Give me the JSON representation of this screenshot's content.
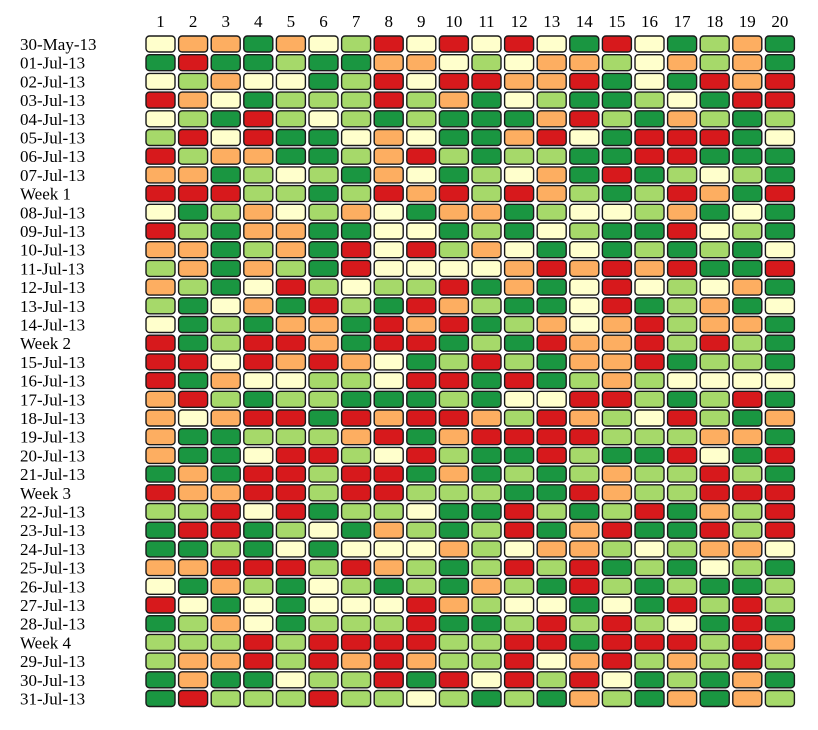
{
  "chart_data": {
    "type": "heatmap",
    "title": "",
    "xlabel": "",
    "ylabel": "",
    "columns": [
      "1",
      "2",
      "3",
      "4",
      "5",
      "6",
      "7",
      "8",
      "9",
      "10",
      "11",
      "12",
      "13",
      "14",
      "15",
      "16",
      "17",
      "18",
      "19",
      "20"
    ],
    "rows": [
      "30-May-13",
      "01-Jul-13",
      "02-Jul-13",
      "03-Jul-13",
      "04-Jul-13",
      "05-Jul-13",
      "06-Jul-13",
      "07-Jul-13",
      "Week 1",
      "08-Jul-13",
      "09-Jul-13",
      "10-Jul-13",
      "11-Jul-13",
      "12-Jul-13",
      "13-Jul-13",
      "14-Jul-13",
      "Week 2",
      "15-Jul-13",
      "16-Jul-13",
      "17-Jul-13",
      "18-Jul-13",
      "19-Jul-13",
      "20-Jul-13",
      "21-Jul-13",
      "Week 3",
      "22-Jul-13",
      "23-Jul-13",
      "24-Jul-13",
      "25-Jul-13",
      "26-Jul-13",
      "27-Jul-13",
      "28-Jul-13",
      "Week 4",
      "29-Jul-13",
      "30-Jul-13",
      "31-Jul-13"
    ],
    "scale": [
      "1",
      "2",
      "3",
      "4",
      "5"
    ],
    "colors": {
      "1": "#d7191c",
      "2": "#fdae61",
      "3": "#ffffcc",
      "4": "#a6d96a",
      "5": "#1a9641"
    },
    "values": [
      [
        3,
        2,
        2,
        5,
        2,
        3,
        4,
        1,
        3,
        1,
        3,
        1,
        3,
        5,
        1,
        3,
        5,
        4,
        2,
        5
      ],
      [
        5,
        1,
        5,
        5,
        4,
        5,
        5,
        2,
        2,
        3,
        4,
        3,
        2,
        2,
        4,
        3,
        2,
        4,
        2,
        5
      ],
      [
        3,
        4,
        2,
        3,
        3,
        5,
        4,
        1,
        3,
        1,
        1,
        2,
        2,
        1,
        5,
        3,
        5,
        1,
        2,
        1
      ],
      [
        1,
        2,
        3,
        5,
        4,
        4,
        4,
        1,
        4,
        2,
        5,
        3,
        4,
        5,
        5,
        4,
        3,
        5,
        1,
        1
      ],
      [
        3,
        4,
        5,
        1,
        4,
        3,
        4,
        5,
        4,
        5,
        5,
        5,
        2,
        1,
        4,
        5,
        2,
        4,
        5,
        4
      ],
      [
        4,
        1,
        3,
        1,
        5,
        5,
        3,
        2,
        3,
        5,
        5,
        2,
        1,
        3,
        5,
        1,
        1,
        1,
        5,
        3
      ],
      [
        1,
        4,
        2,
        2,
        5,
        5,
        4,
        2,
        1,
        4,
        5,
        4,
        4,
        5,
        5,
        1,
        1,
        5,
        5,
        5
      ],
      [
        2,
        2,
        5,
        4,
        3,
        4,
        5,
        2,
        3,
        5,
        4,
        3,
        2,
        5,
        1,
        5,
        4,
        3,
        4,
        5
      ],
      [
        1,
        1,
        1,
        4,
        4,
        5,
        4,
        1,
        2,
        1,
        4,
        1,
        2,
        4,
        5,
        4,
        1,
        2,
        5,
        1
      ],
      [
        3,
        5,
        4,
        2,
        3,
        4,
        2,
        3,
        5,
        2,
        2,
        5,
        4,
        3,
        3,
        4,
        2,
        5,
        3,
        5
      ],
      [
        1,
        4,
        5,
        2,
        2,
        5,
        5,
        3,
        3,
        5,
        4,
        5,
        3,
        4,
        5,
        5,
        1,
        3,
        4,
        5
      ],
      [
        2,
        2,
        5,
        4,
        2,
        5,
        1,
        3,
        1,
        4,
        2,
        3,
        5,
        3,
        5,
        4,
        5,
        4,
        5,
        3
      ],
      [
        4,
        2,
        5,
        2,
        4,
        5,
        1,
        3,
        3,
        3,
        3,
        2,
        1,
        2,
        1,
        2,
        1,
        5,
        5,
        1
      ],
      [
        2,
        4,
        5,
        3,
        1,
        4,
        3,
        4,
        4,
        1,
        5,
        2,
        5,
        3,
        1,
        3,
        4,
        3,
        2,
        5
      ],
      [
        4,
        5,
        3,
        2,
        5,
        1,
        4,
        5,
        1,
        2,
        4,
        5,
        5,
        3,
        1,
        5,
        4,
        2,
        5,
        3
      ],
      [
        3,
        5,
        4,
        5,
        2,
        2,
        5,
        1,
        2,
        1,
        5,
        4,
        2,
        3,
        2,
        1,
        4,
        2,
        2,
        5
      ],
      [
        1,
        5,
        4,
        1,
        1,
        2,
        5,
        1,
        1,
        5,
        4,
        5,
        1,
        2,
        2,
        1,
        4,
        1,
        4,
        5
      ],
      [
        1,
        1,
        3,
        1,
        2,
        1,
        2,
        3,
        5,
        4,
        1,
        4,
        5,
        2,
        2,
        1,
        5,
        4,
        4,
        5
      ],
      [
        1,
        5,
        2,
        3,
        3,
        4,
        4,
        3,
        1,
        1,
        5,
        1,
        5,
        4,
        2,
        4,
        3,
        3,
        3,
        3
      ],
      [
        2,
        1,
        4,
        5,
        4,
        4,
        5,
        5,
        5,
        4,
        5,
        3,
        3,
        1,
        1,
        4,
        5,
        4,
        1,
        5
      ],
      [
        2,
        3,
        2,
        1,
        1,
        5,
        1,
        2,
        1,
        1,
        2,
        4,
        1,
        2,
        4,
        3,
        1,
        4,
        5,
        2
      ],
      [
        2,
        5,
        5,
        4,
        4,
        4,
        2,
        1,
        5,
        2,
        1,
        1,
        1,
        1,
        4,
        4,
        4,
        2,
        2,
        5
      ],
      [
        2,
        5,
        5,
        3,
        1,
        1,
        4,
        3,
        1,
        4,
        5,
        5,
        1,
        4,
        5,
        5,
        1,
        3,
        5,
        1
      ],
      [
        5,
        2,
        5,
        1,
        1,
        4,
        1,
        1,
        5,
        2,
        5,
        4,
        5,
        4,
        2,
        4,
        4,
        1,
        4,
        5
      ],
      [
        1,
        2,
        2,
        1,
        1,
        4,
        1,
        1,
        4,
        4,
        4,
        5,
        5,
        1,
        2,
        4,
        4,
        1,
        1,
        1
      ],
      [
        4,
        4,
        1,
        3,
        1,
        5,
        4,
        4,
        3,
        5,
        5,
        1,
        4,
        5,
        4,
        1,
        5,
        2,
        4,
        1
      ],
      [
        5,
        1,
        1,
        5,
        4,
        3,
        5,
        2,
        4,
        5,
        4,
        1,
        5,
        2,
        1,
        5,
        5,
        1,
        4,
        1
      ],
      [
        5,
        5,
        4,
        5,
        3,
        5,
        3,
        3,
        3,
        2,
        4,
        3,
        2,
        2,
        4,
        3,
        4,
        2,
        2,
        3
      ],
      [
        2,
        2,
        1,
        1,
        1,
        4,
        1,
        2,
        4,
        5,
        4,
        1,
        4,
        1,
        5,
        4,
        5,
        3,
        4,
        5
      ],
      [
        3,
        5,
        2,
        4,
        5,
        3,
        4,
        5,
        4,
        5,
        2,
        4,
        5,
        1,
        4,
        5,
        4,
        5,
        5,
        4
      ],
      [
        1,
        3,
        5,
        3,
        5,
        3,
        3,
        3,
        1,
        2,
        4,
        3,
        3,
        5,
        3,
        5,
        1,
        4,
        1,
        4
      ],
      [
        5,
        4,
        2,
        3,
        5,
        4,
        4,
        4,
        1,
        5,
        5,
        4,
        1,
        4,
        1,
        4,
        3,
        5,
        1,
        5
      ],
      [
        4,
        4,
        4,
        1,
        4,
        1,
        1,
        1,
        1,
        4,
        4,
        1,
        1,
        5,
        1,
        1,
        1,
        4,
        1,
        2
      ],
      [
        4,
        2,
        2,
        1,
        4,
        1,
        2,
        1,
        2,
        4,
        4,
        1,
        3,
        2,
        1,
        4,
        2,
        4,
        1,
        4
      ],
      [
        5,
        2,
        5,
        5,
        3,
        4,
        4,
        1,
        5,
        1,
        3,
        1,
        4,
        1,
        3,
        5,
        4,
        5,
        2,
        5
      ],
      [
        5,
        1,
        4,
        4,
        4,
        1,
        4,
        4,
        3,
        4,
        5,
        4,
        5,
        2,
        4,
        5,
        2,
        5,
        2,
        4
      ]
    ]
  }
}
